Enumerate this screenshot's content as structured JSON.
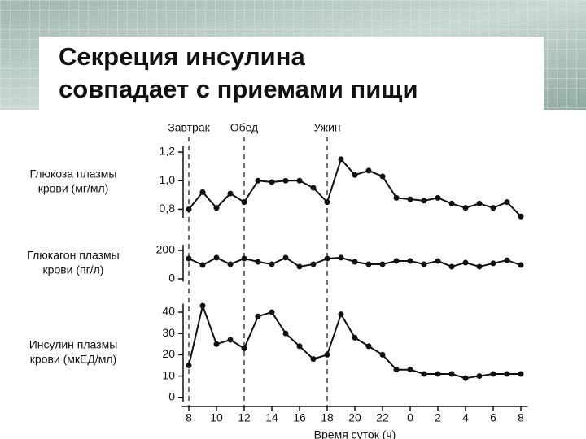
{
  "title": [
    "Секреция инсулина",
    "совпадает с приемами пищи"
  ],
  "annotations": [
    {
      "label": "Завтрак",
      "x": 8
    },
    {
      "label": "Обед",
      "x": 12
    },
    {
      "label": "Ужин",
      "x": 18
    }
  ],
  "chart_data": [
    {
      "type": "line",
      "ylabel": [
        "Глюкоза плазмы",
        "крови (мг/мл)"
      ],
      "x": [
        8,
        9,
        10,
        11,
        12,
        13,
        14,
        15,
        16,
        17,
        18,
        19,
        20,
        21,
        22,
        23,
        24,
        25,
        26,
        27,
        28,
        29,
        30,
        31,
        32
      ],
      "series": [
        {
          "name": null,
          "color": "#111111",
          "values": [
            0.8,
            0.92,
            0.81,
            0.91,
            0.85,
            1.0,
            0.99,
            1.0,
            1.0,
            0.95,
            0.85,
            1.15,
            1.04,
            1.07,
            1.03,
            0.88,
            0.87,
            0.86,
            0.88,
            0.84,
            0.81,
            0.84,
            0.81,
            0.85,
            0.75
          ]
        }
      ],
      "xlim": [
        7.5,
        32.5
      ],
      "ylim": [
        0.74,
        1.24
      ],
      "yticks": [
        {
          "value": 1.2,
          "label": "1,2"
        },
        {
          "value": 1.0,
          "label": "1,0"
        },
        {
          "value": 0.8,
          "label": "0,8"
        }
      ]
    },
    {
      "type": "line",
      "ylabel": [
        "Глюкагон плазмы",
        "крови (пг/л)"
      ],
      "x": [
        8,
        9,
        10,
        11,
        12,
        13,
        14,
        15,
        16,
        17,
        18,
        19,
        20,
        21,
        22,
        23,
        24,
        25,
        26,
        27,
        28,
        29,
        30,
        31,
        32
      ],
      "series": [
        {
          "name": null,
          "color": "#111111",
          "values": [
            143,
            97,
            149,
            103,
            143,
            120,
            103,
            149,
            86,
            103,
            143,
            149,
            120,
            103,
            103,
            126,
            126,
            103,
            126,
            86,
            114,
            86,
            109,
            131,
            97
          ]
        }
      ],
      "xlim": [
        7.5,
        32.5
      ],
      "ylim": [
        -20,
        240
      ],
      "yticks": [
        200,
        0
      ]
    },
    {
      "type": "line",
      "ylabel": [
        "Инсулин плазмы",
        "крови (мкЕД/мл)"
      ],
      "x": [
        8,
        9,
        10,
        11,
        12,
        13,
        14,
        15,
        16,
        17,
        18,
        19,
        20,
        21,
        22,
        23,
        24,
        25,
        26,
        27,
        28,
        29,
        30,
        31,
        32
      ],
      "series": [
        {
          "name": null,
          "color": "#111111",
          "values": [
            15,
            43,
            25,
            27,
            23,
            38,
            40,
            30,
            24,
            18,
            20,
            39,
            28,
            24,
            20,
            13,
            13,
            11,
            11,
            11,
            9,
            10,
            11,
            11,
            11
          ]
        }
      ],
      "xlim": [
        7.5,
        32.5
      ],
      "ylim": [
        -2,
        44
      ],
      "yticks": [
        40,
        30,
        20,
        10,
        0
      ],
      "xticks": [
        8,
        10,
        12,
        14,
        16,
        18,
        20,
        22,
        {
          "value": 24,
          "label": "0"
        },
        {
          "value": 26,
          "label": "2"
        },
        {
          "value": 28,
          "label": "4"
        },
        {
          "value": 30,
          "label": "6"
        },
        {
          "value": 32,
          "label": "8"
        }
      ],
      "xlabel": "Время суток (ч)"
    }
  ]
}
